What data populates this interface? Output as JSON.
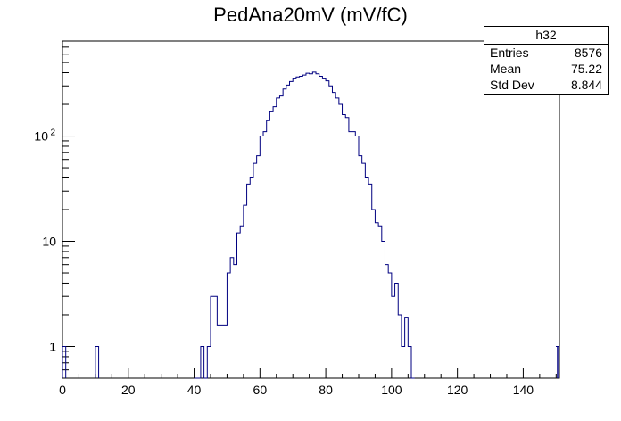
{
  "chart_data": {
    "type": "histogram",
    "title": "PedAna20mV (mV/fC)",
    "xlabel": "",
    "ylabel": "",
    "xlim": [
      0,
      151
    ],
    "ylim": [
      0.5,
      800
    ],
    "ylog": true,
    "bin_width": 1,
    "x_ticks": [
      "0",
      "20",
      "40",
      "60",
      "80",
      "100",
      "120",
      "140"
    ],
    "y_ticks": [
      "1",
      "10",
      "10^2"
    ],
    "line_color": "#000080",
    "grid": false,
    "bins": [
      [
        0,
        1
      ],
      [
        10,
        1
      ],
      [
        42,
        1
      ],
      [
        44,
        1
      ],
      [
        45,
        3
      ],
      [
        46,
        3
      ],
      [
        47,
        1.6
      ],
      [
        48,
        1.6
      ],
      [
        49,
        1.6
      ],
      [
        50,
        5
      ],
      [
        51,
        7
      ],
      [
        52,
        6
      ],
      [
        53,
        12
      ],
      [
        54,
        14
      ],
      [
        55,
        22
      ],
      [
        56,
        35
      ],
      [
        57,
        40
      ],
      [
        58,
        55
      ],
      [
        59,
        65
      ],
      [
        60,
        100
      ],
      [
        61,
        110
      ],
      [
        62,
        140
      ],
      [
        63,
        170
      ],
      [
        64,
        190
      ],
      [
        65,
        230
      ],
      [
        66,
        240
      ],
      [
        67,
        280
      ],
      [
        68,
        305
      ],
      [
        69,
        330
      ],
      [
        70,
        350
      ],
      [
        71,
        365
      ],
      [
        72,
        370
      ],
      [
        73,
        380
      ],
      [
        74,
        395
      ],
      [
        75,
        390
      ],
      [
        76,
        405
      ],
      [
        77,
        390
      ],
      [
        78,
        370
      ],
      [
        79,
        350
      ],
      [
        80,
        335
      ],
      [
        81,
        300
      ],
      [
        82,
        260
      ],
      [
        83,
        230
      ],
      [
        84,
        200
      ],
      [
        85,
        160
      ],
      [
        86,
        150
      ],
      [
        87,
        110
      ],
      [
        88,
        110
      ],
      [
        89,
        100
      ],
      [
        90,
        65
      ],
      [
        91,
        55
      ],
      [
        92,
        40
      ],
      [
        93,
        35
      ],
      [
        94,
        20
      ],
      [
        95,
        15
      ],
      [
        96,
        14
      ],
      [
        97,
        10
      ],
      [
        98,
        6
      ],
      [
        99,
        5
      ],
      [
        100,
        3
      ],
      [
        101,
        4
      ],
      [
        102,
        2
      ],
      [
        103,
        1
      ],
      [
        104,
        1.9
      ],
      [
        105,
        1
      ],
      [
        106,
        0
      ]
    ],
    "overflow_bin": [
      150,
      1
    ]
  },
  "stats_box": {
    "name": "h32",
    "rows": [
      {
        "label": "Entries",
        "value": "8576"
      },
      {
        "label": "Mean",
        "value": "75.22"
      },
      {
        "label": "Std Dev",
        "value": "8.844"
      }
    ]
  }
}
